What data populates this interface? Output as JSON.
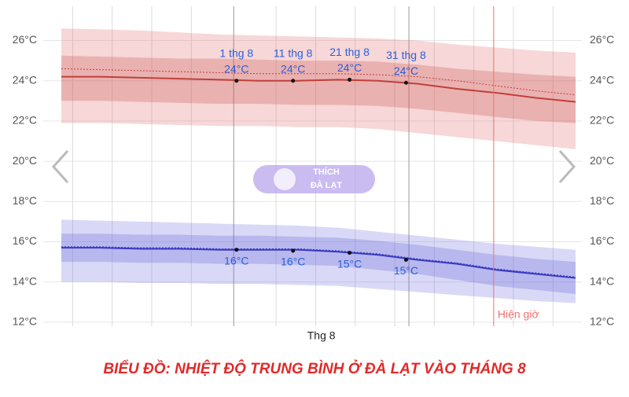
{
  "chart_data": {
    "type": "temperature-band",
    "title": "BIỂU ĐỒ: NHIỆT ĐỘ TRUNG BÌNH Ở ĐÀ LẠT VÀO THÁNG 8",
    "watermark": [
      "THÍCH",
      "ĐÀ LẠT"
    ],
    "x": [
      182,
      189,
      196,
      203,
      210,
      217,
      224,
      231,
      238,
      245,
      252,
      259,
      266,
      273
    ],
    "xlim": [
      178.8,
      274.1
    ],
    "ylim": [
      11.8,
      27.7
    ],
    "yticks": [
      {
        "value": 12,
        "label": "12°C"
      },
      {
        "value": 14,
        "label": "14°C"
      },
      {
        "value": 16,
        "label": "16°C"
      },
      {
        "value": 18,
        "label": "18°C"
      },
      {
        "value": 20,
        "label": "20°C"
      },
      {
        "value": 22,
        "label": "22°C"
      },
      {
        "value": 24,
        "label": "24°C"
      },
      {
        "value": 26,
        "label": "26°C"
      }
    ],
    "grid": true,
    "xgrid": [
      184,
      191,
      198,
      205,
      220,
      227,
      234,
      241,
      248,
      255,
      262,
      269
    ],
    "month_lines": [
      212.5,
      243.5
    ],
    "month_label": {
      "x": 228,
      "label": "Thg 8"
    },
    "bands": [
      {
        "color": "rgba(225,110,110,0.28)",
        "upper": [
          26.6,
          26.55,
          26.5,
          26.4,
          26.3,
          26.25,
          26.2,
          26.15,
          26.1,
          26.0,
          25.8,
          25.65,
          25.5,
          25.4
        ],
        "lower": [
          21.9,
          21.9,
          21.85,
          21.8,
          21.75,
          21.75,
          21.7,
          21.7,
          21.6,
          21.4,
          21.2,
          21.0,
          20.8,
          20.6
        ]
      },
      {
        "color": "rgba(200,80,80,0.28)",
        "upper": [
          25.25,
          25.2,
          25.15,
          25.1,
          25.1,
          25.05,
          25.0,
          25.0,
          24.95,
          24.8,
          24.6,
          24.45,
          24.3,
          24.2
        ],
        "lower": [
          23.0,
          23.0,
          22.95,
          22.9,
          22.85,
          22.85,
          22.8,
          22.8,
          22.75,
          22.6,
          22.4,
          22.2,
          22.0,
          21.9
        ]
      },
      {
        "color": "rgba(120,120,225,0.28)",
        "upper": [
          17.1,
          17.05,
          17.0,
          16.95,
          16.9,
          16.85,
          16.8,
          16.7,
          16.5,
          16.3,
          16.1,
          15.9,
          15.75,
          15.6
        ],
        "lower": [
          14.0,
          14.0,
          13.95,
          13.95,
          13.9,
          13.9,
          13.85,
          13.8,
          13.65,
          13.5,
          13.35,
          13.2,
          13.05,
          12.95
        ]
      },
      {
        "color": "rgba(100,100,215,0.28)",
        "upper": [
          16.4,
          16.4,
          16.35,
          16.35,
          16.3,
          16.3,
          16.25,
          16.2,
          16.05,
          15.85,
          15.6,
          15.35,
          15.15,
          15.0
        ],
        "lower": [
          15.0,
          15.0,
          14.95,
          14.95,
          14.9,
          14.9,
          14.85,
          14.8,
          14.6,
          14.4,
          14.1,
          13.8,
          13.6,
          13.4
        ]
      }
    ],
    "series": [
      {
        "color": "#c0403a",
        "dash": "2,2",
        "values": [
          24.6,
          24.55,
          24.5,
          24.45,
          24.4,
          24.35,
          24.35,
          24.35,
          24.3,
          24.2,
          24.0,
          23.75,
          23.5,
          23.3
        ]
      },
      {
        "color": "#c0403a",
        "values": [
          24.2,
          24.2,
          24.15,
          24.1,
          24.05,
          24.0,
          24.0,
          24.05,
          24.0,
          23.85,
          23.6,
          23.4,
          23.15,
          22.95
        ]
      },
      {
        "color": "#3a3ac0",
        "dash": "2,2",
        "values": [
          15.75,
          15.75,
          15.7,
          15.7,
          15.65,
          15.65,
          15.65,
          15.55,
          15.4,
          15.15,
          14.95,
          14.65,
          14.45,
          14.25
        ]
      },
      {
        "color": "#3a3ac0",
        "values": [
          15.7,
          15.7,
          15.65,
          15.65,
          15.6,
          15.6,
          15.6,
          15.5,
          15.35,
          15.1,
          14.9,
          14.6,
          14.4,
          14.2
        ]
      }
    ],
    "markers": [
      {
        "x": 213,
        "label": "1 thg 8",
        "high": 24.0,
        "high_label": "24°C",
        "low": 15.6,
        "low_label": "16°C"
      },
      {
        "x": 223,
        "label": "11 thg 8",
        "high": 24.0,
        "high_label": "24°C",
        "low": 15.55,
        "low_label": "16°C"
      },
      {
        "x": 233,
        "label": "21 thg 8",
        "high": 24.05,
        "high_label": "24°C",
        "low": 15.45,
        "low_label": "15°C"
      },
      {
        "x": 243,
        "label": "31 thg 8",
        "high": 23.9,
        "high_label": "24°C",
        "low": 15.1,
        "low_label": "15°C"
      }
    ],
    "now": {
      "x": 258.5,
      "label": "Hiện giờ",
      "color": "#f07070"
    }
  }
}
